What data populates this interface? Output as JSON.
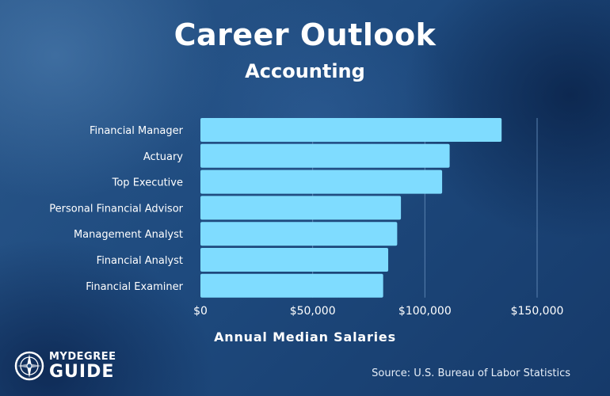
{
  "page": {
    "title": "Career Outlook",
    "subtitle": "Accounting",
    "source": "Source: U.S. Bureau of Labor Statistics",
    "brand_line1": "MYDEGREE",
    "brand_line2": "GUIDE"
  },
  "colors": {
    "bar": "#7fdcff",
    "gridline": "#5a82b0",
    "text": "#ffffff"
  },
  "chart_data": {
    "type": "bar",
    "orientation": "horizontal",
    "categories": [
      "Financial Manager",
      "Actuary",
      "Top Executive",
      "Personal Financial Advisor",
      "Management Analyst",
      "Financial Analyst",
      "Financial Examiner"
    ],
    "values": [
      134180,
      111030,
      107680,
      89330,
      87660,
      83660,
      81410
    ],
    "xlabel": "Annual Median Salaries",
    "ylabel": "",
    "xlim": [
      0,
      150000
    ],
    "x_ticks": [
      0,
      50000,
      100000,
      150000
    ],
    "x_tick_labels": [
      "$0",
      "$50,000",
      "$100,000",
      "$150,000"
    ],
    "grid": true
  }
}
